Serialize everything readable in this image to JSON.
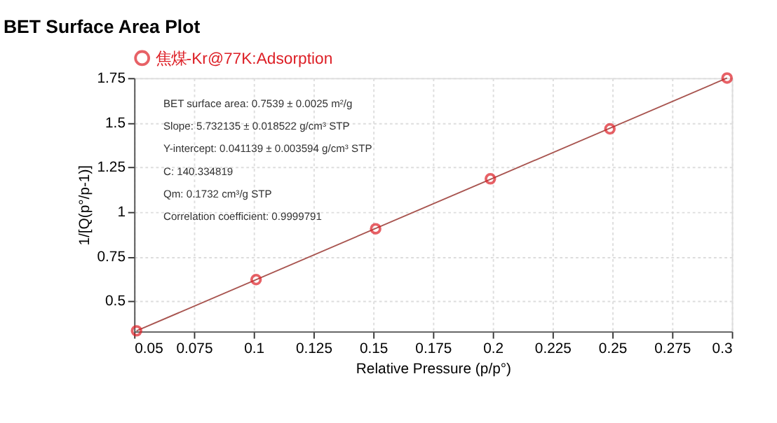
{
  "chart_data": {
    "type": "scatter",
    "title": "BET Surface Area Plot",
    "xlabel": "Relative Pressure (p/p°)",
    "ylabel": "1/[Q(p°/p-1)]",
    "series": [
      {
        "name": "焦煤-Kr@77K:Adsorption",
        "color": "#dd1f26",
        "marker": "circle",
        "x": [
          0.051,
          0.101,
          0.151,
          0.199,
          0.249,
          0.298
        ],
        "values": [
          0.333,
          0.62,
          0.905,
          1.185,
          1.465,
          1.75
        ]
      },
      {
        "type": "line",
        "color": "#a8544f",
        "x": [
          0.051,
          0.298
        ],
        "values": [
          0.333,
          1.75
        ]
      }
    ],
    "annotations": [
      "BET surface area: 0.7539 ± 0.0025 m²/g",
      "Slope: 5.732135 ± 0.018522 g/cm³ STP",
      "Y-intercept: 0.041139 ± 0.003594 g/cm³ STP",
      "C: 140.334819",
      "Qm: 0.1732 cm³/g STP",
      "Correlation coefficient: 0.9999791"
    ],
    "xlim": [
      0.05,
      0.3
    ],
    "xticks": [
      0.05,
      0.075,
      0.1,
      0.125,
      0.15,
      0.175,
      0.2,
      0.225,
      0.25,
      0.275,
      0.3
    ],
    "ylim": [
      0.33,
      1.75
    ],
    "yticks": [
      0.5,
      0.75,
      1,
      1.25,
      1.5,
      1.75
    ],
    "grid": true,
    "legend": "top"
  }
}
